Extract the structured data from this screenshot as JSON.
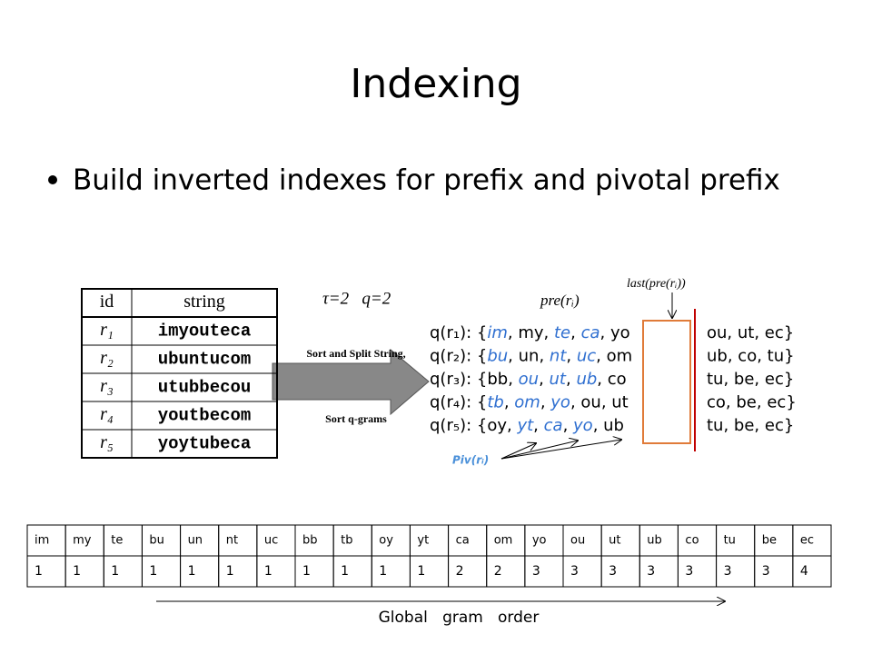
{
  "header": {
    "title": "Indexing",
    "bullet": "Build inverted indexes for prefix and pivotal prefix"
  },
  "record_table": {
    "columns": [
      "id",
      "string"
    ],
    "rows": [
      [
        "r₁",
        "imyouteca"
      ],
      [
        "r₂",
        "ubuntucom"
      ],
      [
        "r₃",
        "utubbecou"
      ],
      [
        "r₄",
        "youtbecom"
      ],
      [
        "r₅",
        "yoytubeca"
      ]
    ]
  },
  "params": "τ=2   q=2",
  "arrow": {
    "top_label": "Sort and Split String,",
    "bottom_label": "Sort q-grams"
  },
  "annotations": {
    "prefix": "pre(rᵢ)",
    "last": "last(pre(rᵢ))",
    "pivot": "Piv(rᵢ)"
  },
  "qgrams": [
    {
      "label": "q(r₁): {",
      "prefix": [
        {
          "text": "im",
          "pivot": true
        },
        {
          "text": "my",
          "pivot": false
        },
        {
          "text": "te",
          "pivot": true
        },
        {
          "text": "ca",
          "pivot": true
        },
        {
          "text": "yo",
          "pivot": false
        }
      ],
      "suffix": [
        "ou",
        "ut",
        "ec"
      ]
    },
    {
      "label": "q(r₂): {",
      "prefix": [
        {
          "text": "bu",
          "pivot": true
        },
        {
          "text": "un",
          "pivot": false
        },
        {
          "text": "nt",
          "pivot": true
        },
        {
          "text": "uc",
          "pivot": true
        },
        {
          "text": "om",
          "pivot": false
        }
      ],
      "suffix": [
        "ub",
        "co",
        "tu"
      ]
    },
    {
      "label": "q(r₃): {",
      "prefix": [
        {
          "text": "bb",
          "pivot": false
        },
        {
          "text": "ou",
          "pivot": true
        },
        {
          "text": "ut",
          "pivot": true
        },
        {
          "text": "ub",
          "pivot": true
        },
        {
          "text": "co",
          "pivot": false
        }
      ],
      "suffix": [
        "tu",
        "be",
        "ec"
      ]
    },
    {
      "label": "q(r₄): {",
      "prefix": [
        {
          "text": "tb",
          "pivot": true
        },
        {
          "text": "om",
          "pivot": true
        },
        {
          "text": "yo",
          "pivot": true
        },
        {
          "text": "ou",
          "pivot": false
        },
        {
          "text": "ut",
          "pivot": false
        }
      ],
      "suffix": [
        "co",
        "be",
        "ec"
      ]
    },
    {
      "label": "q(r₅): {",
      "prefix": [
        {
          "text": "oy",
          "pivot": false
        },
        {
          "text": "yt",
          "pivot": true
        },
        {
          "text": "ca",
          "pivot": true
        },
        {
          "text": "yo",
          "pivot": true
        },
        {
          "text": "ub",
          "pivot": false
        }
      ],
      "suffix": [
        "tu",
        "be",
        "ec"
      ]
    }
  ],
  "order_table": {
    "grams": [
      "im",
      "my",
      "te",
      "bu",
      "un",
      "nt",
      "uc",
      "bb",
      "tb",
      "oy",
      "yt",
      "ca",
      "om",
      "yo",
      "ou",
      "ut",
      "ub",
      "co",
      "tu",
      "be",
      "ec"
    ],
    "counts": [
      1,
      1,
      1,
      1,
      1,
      1,
      1,
      1,
      1,
      1,
      1,
      2,
      2,
      3,
      3,
      3,
      3,
      3,
      3,
      3,
      4
    ]
  },
  "order_label": "Global   gram   order"
}
